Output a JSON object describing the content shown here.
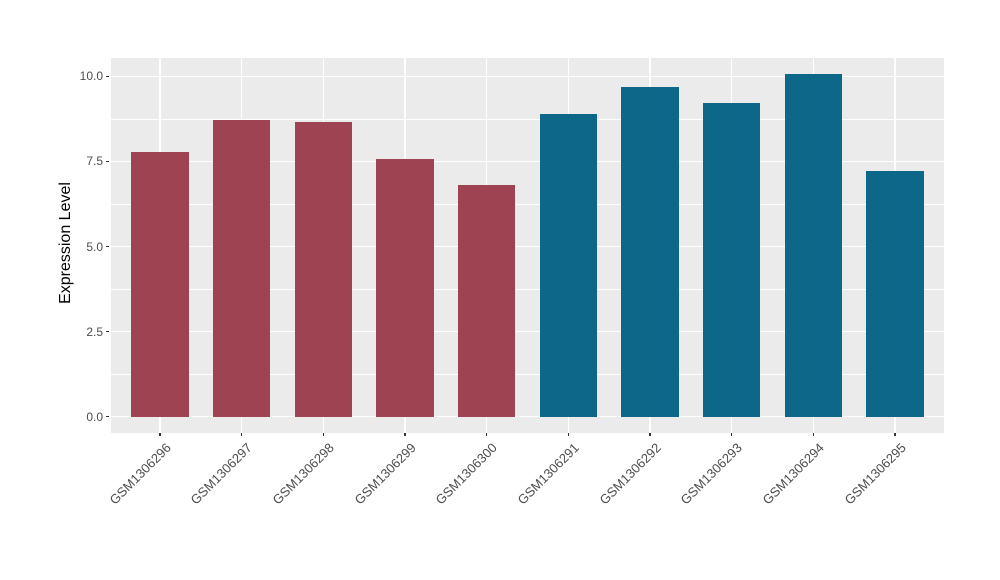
{
  "chart_data": {
    "type": "bar",
    "title": "",
    "xlabel": "",
    "ylabel": "Expression Level",
    "legend_position": "none",
    "grid": "on",
    "panel_background": "#EBEBEB",
    "gridline_color": "#FFFFFF",
    "axis_text_color": "#4D4D4D",
    "tick_mark_color": "#333333",
    "group_colors": {
      "left_group": "#9D4351",
      "right_group": "#0D6788"
    },
    "ylim": [
      -0.48,
      10.54
    ],
    "y_ticks": [
      {
        "label": "0.0",
        "value": 0.0
      },
      {
        "label": "2.5",
        "value": 2.5
      },
      {
        "label": "5.0",
        "value": 5.0
      },
      {
        "label": "7.5",
        "value": 7.5
      },
      {
        "label": "10.0",
        "value": 10.0
      }
    ],
    "y_minor_ticks": [
      1.25,
      3.75,
      6.25,
      8.75
    ],
    "categories": [
      "GSM1306296",
      "GSM1306297",
      "GSM1306298",
      "GSM1306299",
      "GSM1306300",
      "GSM1306291",
      "GSM1306292",
      "GSM1306293",
      "GSM1306294",
      "GSM1306295"
    ],
    "values": [
      7.78,
      8.71,
      8.66,
      7.58,
      6.81,
      8.89,
      9.68,
      9.23,
      10.06,
      7.21
    ],
    "bars": [
      {
        "label": "GSM1306296",
        "value": 7.78,
        "color": "#9D4351"
      },
      {
        "label": "GSM1306297",
        "value": 8.71,
        "color": "#9D4351"
      },
      {
        "label": "GSM1306298",
        "value": 8.66,
        "color": "#9D4351"
      },
      {
        "label": "GSM1306299",
        "value": 7.58,
        "color": "#9D4351"
      },
      {
        "label": "GSM1306300",
        "value": 6.81,
        "color": "#9D4351"
      },
      {
        "label": "GSM1306291",
        "value": 8.89,
        "color": "#0D6788"
      },
      {
        "label": "GSM1306292",
        "value": 9.68,
        "color": "#0D6788"
      },
      {
        "label": "GSM1306293",
        "value": 9.23,
        "color": "#0D6788"
      },
      {
        "label": "GSM1306294",
        "value": 10.06,
        "color": "#0D6788"
      },
      {
        "label": "GSM1306295",
        "value": 7.21,
        "color": "#0D6788"
      }
    ]
  }
}
